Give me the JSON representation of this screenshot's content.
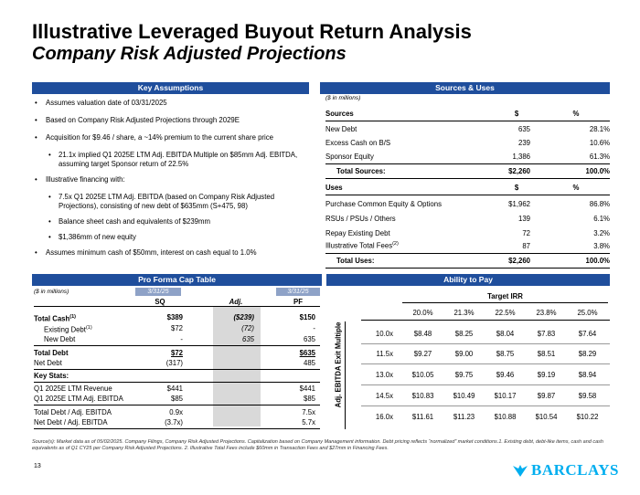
{
  "title": "Illustrative Leveraged Buyout Return Analysis",
  "subtitle": "Company Risk Adjusted Projections",
  "key_assumptions": {
    "header": "Key Assumptions",
    "bullets": [
      "Assumes valuation date of 03/31/2025",
      "Based on Company Risk Adjusted Projections through 2029E",
      "Acquisition for $9.46 / share, a ~14% premium to the current share price",
      "21.1x implied Q1 2025E LTM Adj. EBITDA Multiple on $85mm Adj. EBITDA, assuming target Sponsor return of 22.5%",
      "Illustrative financing with:",
      "7.5x Q1 2025E LTM Adj. EBITDA (based on Company Risk Adjusted Projections), consisting of new debt of $635mm (S+475, 98)",
      "Balance sheet cash and equivalents of $239mm",
      "$1,386mm of new equity",
      "Assumes minimum cash of $50mm, interest on cash equal to 1.0%"
    ]
  },
  "sources_uses": {
    "header": "Sources & Uses",
    "note": "($ in millions)",
    "sources_label": "Sources",
    "col_dollar": "$",
    "col_pct": "%",
    "sources": [
      {
        "label": "New Debt",
        "value": "635",
        "pct": "28.1%"
      },
      {
        "label": "Excess Cash on B/S",
        "value": "239",
        "pct": "10.6%"
      },
      {
        "label": "Sponsor Equity",
        "value": "1,386",
        "pct": "61.3%"
      }
    ],
    "total_sources": {
      "label": "Total Sources:",
      "value": "$2,260",
      "pct": "100.0%"
    },
    "uses_label": "Uses",
    "uses": [
      {
        "label": "Purchase Common Equity & Options",
        "value": "$1,962",
        "pct": "86.8%"
      },
      {
        "label": "RSUs / PSUs / Others",
        "value": "139",
        "pct": "6.1%"
      },
      {
        "label": "Repay Existing Debt",
        "value": "72",
        "pct": "3.2%"
      },
      {
        "label": "Illustrative Total Fees",
        "sup": "(2)",
        "value": "87",
        "pct": "3.8%"
      }
    ],
    "total_uses": {
      "label": "Total Uses:",
      "value": "$2,260",
      "pct": "100.0%"
    }
  },
  "cap_table": {
    "header": "Pro Forma Cap Table",
    "note": "($ in millions)",
    "date1": "3/31/25",
    "date2": "3/31/25",
    "col_sq": "SQ",
    "col_adj": "Adj.",
    "col_pf": "PF",
    "total_cash": {
      "label": "Total Cash",
      "sup": "(1)",
      "sq": "$389",
      "adj": "($239)",
      "pf": "$150"
    },
    "existing_debt": {
      "label": "Existing Debt",
      "sup": "(1)",
      "sq": "$72",
      "adj": "(72)",
      "pf": "-"
    },
    "new_debt": {
      "label": "New Debt",
      "sq": "-",
      "adj": "635",
      "pf": "635"
    },
    "total_debt": {
      "label": "Total Debt",
      "sq": "$72",
      "pf": "$635"
    },
    "net_debt": {
      "label": "Net Debt",
      "sq": "(317)",
      "pf": "485"
    },
    "key_stats": "Key Stats:",
    "revenue": {
      "label": "Q1 2025E LTM Revenue",
      "sq": "$441",
      "pf": "$441"
    },
    "ebitda": {
      "label": "Q1 2025E LTM Adj. EBITDA",
      "sq": "$85",
      "pf": "$85"
    },
    "td_ebitda": {
      "label": "Total Debt / Adj. EBITDA",
      "sq": "0.9x",
      "pf": "7.5x"
    },
    "nd_ebitda": {
      "label": "Net Debt / Adj. EBITDA",
      "sq": "(3.7x)",
      "pf": "5.7x"
    }
  },
  "ability_to_pay": {
    "header": "Ability to Pay",
    "target_irr_label": "Target IRR",
    "row_axis_label": "Adj. EBITDA Exit Multiple",
    "irr_cols": [
      "20.0%",
      "21.3%",
      "22.5%",
      "23.8%",
      "25.0%"
    ],
    "rows": [
      {
        "mult": "10.0x",
        "vals": [
          "$8.48",
          "$8.25",
          "$8.04",
          "$7.83",
          "$7.64"
        ]
      },
      {
        "mult": "11.5x",
        "vals": [
          "$9.27",
          "$9.00",
          "$8.75",
          "$8.51",
          "$8.29"
        ]
      },
      {
        "mult": "13.0x",
        "vals": [
          "$10.05",
          "$9.75",
          "$9.46",
          "$9.19",
          "$8.94"
        ]
      },
      {
        "mult": "14.5x",
        "vals": [
          "$10.83",
          "$10.49",
          "$10.17",
          "$9.87",
          "$9.58"
        ]
      },
      {
        "mult": "16.0x",
        "vals": [
          "$11.61",
          "$11.23",
          "$10.88",
          "$10.54",
          "$10.22"
        ]
      }
    ]
  },
  "footnote": "Source(s): Market data as of 05/02/2025. Company Filings, Company Risk Adjusted Projections. Capitalization based on Company Management information. Debt pricing reflects “normalized” market conditions.1. Existing debt, debt-like items, cash and cash equivalents as of Q1 CY25 per Company Risk Adjusted Projections. 2. Illustrative Total Fees include $60mm in Transaction Fees and $27mm in Financing Fees.",
  "page_number": "13",
  "logo": "BARCLAYS",
  "colors": {
    "header_bar": "#1f4e9c",
    "logo": "#00aeef"
  }
}
